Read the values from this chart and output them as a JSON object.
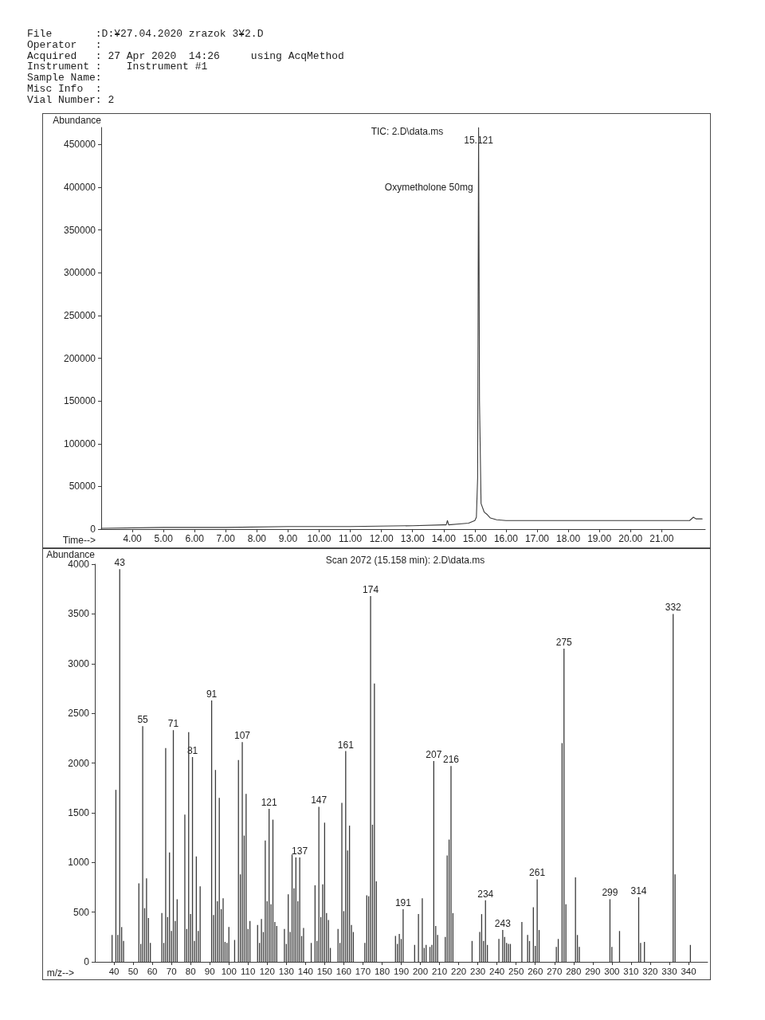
{
  "chart_data": [
    {
      "type": "other",
      "annotations": [
        "File       :D:¥27.04.2020 zrazok 3¥2.D",
        "Operator   :",
        "Acquired   : 27 Apr 2020  14:26     using AcqMethod",
        "Instrument :    Instrument #1",
        "Sample Name:",
        "Misc Info  :",
        "Vial Number: 2"
      ]
    },
    {
      "type": "line",
      "title": "TIC: 2.D\\data.ms",
      "xlabel": "Time-->",
      "ylabel": "Abundance",
      "color": "#3a3a3a",
      "marker": "none",
      "x": [
        3,
        5,
        7,
        9,
        11,
        13,
        14,
        14.08,
        14.12,
        14.16,
        14.5,
        14.8,
        15,
        15.05,
        15.09,
        15.121,
        15.15,
        15.2,
        15.3,
        15.4,
        15.5,
        15.7,
        16,
        17,
        18,
        19,
        20,
        21,
        21.9,
        22.02,
        22.1,
        22.3
      ],
      "values": [
        1000,
        2000,
        2000,
        3000,
        3000,
        4000,
        5000,
        5000,
        10000,
        5000,
        6000,
        7000,
        10000,
        14000,
        60000,
        470000,
        150000,
        30000,
        20000,
        17000,
        13000,
        11000,
        10000,
        10000,
        10000,
        10000,
        10000,
        10000,
        10000,
        14000,
        12000,
        12000
      ],
      "xlim": [
        3,
        22.4
      ],
      "xticks": [
        {
          "value": 4,
          "label": "4.00"
        },
        {
          "value": 5,
          "label": "5.00"
        },
        {
          "value": 6,
          "label": "6.00"
        },
        {
          "value": 7,
          "label": "7.00"
        },
        {
          "value": 8,
          "label": "8.00"
        },
        {
          "value": 9,
          "label": "9.00"
        },
        {
          "value": 10,
          "label": "10.00"
        },
        {
          "value": 11,
          "label": "11.00"
        },
        {
          "value": 12,
          "label": "12.00"
        },
        {
          "value": 13,
          "label": "13.00"
        },
        {
          "value": 14,
          "label": "14.00"
        },
        {
          "value": 15,
          "label": "15.00"
        },
        {
          "value": 16,
          "label": "16.00"
        },
        {
          "value": 17,
          "label": "17.00"
        },
        {
          "value": 18,
          "label": "18.00"
        },
        {
          "value": 19,
          "label": "19.00"
        },
        {
          "value": 20,
          "label": "20.00"
        },
        {
          "value": 21,
          "label": "21.00"
        }
      ],
      "ylim": [
        0,
        470000
      ],
      "yticks": [
        0,
        50000,
        100000,
        150000,
        200000,
        250000,
        300000,
        350000,
        400000,
        450000
      ],
      "annotations": [
        {
          "text": "15.121",
          "x": 15.121,
          "y": 470000
        },
        {
          "text": "Oxymetholone 50mg",
          "x": 15.121,
          "y": 400000
        }
      ]
    },
    {
      "type": "bar",
      "title": "Scan 2072 (15.158 min): 2.D\\data.ms",
      "xlabel": "m/z-->",
      "ylabel": "Abundance",
      "color": "#3a3a3a",
      "x": [
        39,
        41,
        42,
        43,
        44,
        45,
        53,
        54,
        55,
        56,
        57,
        58,
        59,
        65,
        66,
        67,
        68,
        69,
        70,
        71,
        72,
        73,
        77,
        78,
        79,
        80,
        81,
        82,
        83,
        84,
        85,
        91,
        92,
        93,
        94,
        95,
        96,
        97,
        98,
        99,
        100,
        103,
        105,
        106,
        107,
        108,
        109,
        110,
        111,
        115,
        116,
        117,
        118,
        119,
        120,
        121,
        122,
        123,
        124,
        125,
        129,
        130,
        131,
        132,
        133,
        134,
        135,
        136,
        137,
        138,
        139,
        143,
        145,
        146,
        147,
        148,
        149,
        150,
        151,
        152,
        153,
        157,
        158,
        159,
        160,
        161,
        162,
        163,
        164,
        165,
        171,
        172,
        173,
        174,
        175,
        176,
        177,
        187,
        188,
        189,
        190,
        191,
        197,
        199,
        201,
        202,
        203,
        205,
        206,
        207,
        208,
        209,
        213,
        214,
        215,
        216,
        217,
        227,
        231,
        232,
        233,
        234,
        235,
        241,
        243,
        244,
        245,
        246,
        247,
        253,
        256,
        257,
        259,
        260,
        261,
        262,
        271,
        272,
        274,
        275,
        276,
        281,
        282,
        283,
        299,
        300,
        304,
        314,
        315,
        317,
        332,
        333,
        341
      ],
      "values": [
        270,
        1730,
        270,
        3950,
        350,
        210,
        790,
        180,
        2370,
        540,
        840,
        440,
        190,
        490,
        190,
        2150,
        450,
        1100,
        310,
        2330,
        410,
        630,
        1480,
        330,
        2310,
        480,
        2060,
        210,
        1060,
        310,
        760,
        2630,
        470,
        1930,
        610,
        1650,
        530,
        640,
        200,
        190,
        350,
        220,
        2030,
        880,
        2210,
        1270,
        1690,
        330,
        410,
        370,
        190,
        430,
        300,
        1220,
        610,
        1540,
        580,
        1430,
        400,
        360,
        330,
        180,
        680,
        300,
        1080,
        740,
        1050,
        610,
        1050,
        260,
        340,
        190,
        770,
        210,
        1560,
        450,
        780,
        1400,
        490,
        420,
        140,
        330,
        190,
        1600,
        510,
        2120,
        1120,
        1370,
        370,
        300,
        190,
        670,
        660,
        3680,
        1380,
        2800,
        810,
        260,
        180,
        280,
        230,
        530,
        170,
        480,
        640,
        140,
        170,
        150,
        170,
        2020,
        360,
        270,
        250,
        1070,
        1230,
        1970,
        490,
        210,
        300,
        480,
        210,
        620,
        170,
        230,
        320,
        250,
        190,
        180,
        180,
        400,
        270,
        210,
        550,
        160,
        830,
        320,
        150,
        230,
        2200,
        3150,
        580,
        850,
        270,
        150,
        630,
        150,
        310,
        650,
        190,
        200,
        3500,
        880,
        170
      ],
      "annotations": [
        {
          "text": "43",
          "x": 43,
          "y": 3950
        },
        {
          "text": "55",
          "x": 55,
          "y": 2370
        },
        {
          "text": "71",
          "x": 71,
          "y": 2330
        },
        {
          "text": "81",
          "x": 81,
          "y": 2060
        },
        {
          "text": "91",
          "x": 91,
          "y": 2630
        },
        {
          "text": "107",
          "x": 107,
          "y": 2210
        },
        {
          "text": "121",
          "x": 121,
          "y": 1540
        },
        {
          "text": "137",
          "x": 137,
          "y": 1050
        },
        {
          "text": "147",
          "x": 147,
          "y": 1560
        },
        {
          "text": "161",
          "x": 161,
          "y": 2120
        },
        {
          "text": "174",
          "x": 174,
          "y": 3680
        },
        {
          "text": "191",
          "x": 191,
          "y": 530
        },
        {
          "text": "207",
          "x": 207,
          "y": 2020
        },
        {
          "text": "216",
          "x": 216,
          "y": 1970
        },
        {
          "text": "234",
          "x": 234,
          "y": 620
        },
        {
          "text": "243",
          "x": 243,
          "y": 320
        },
        {
          "text": "261",
          "x": 261,
          "y": 830
        },
        {
          "text": "275",
          "x": 275,
          "y": 3150
        },
        {
          "text": "299",
          "x": 299,
          "y": 630
        },
        {
          "text": "314",
          "x": 314,
          "y": 650
        },
        {
          "text": "332",
          "x": 332,
          "y": 3500
        }
      ],
      "xlim": [
        30,
        350
      ],
      "xticks": [
        40,
        50,
        60,
        70,
        80,
        90,
        100,
        110,
        120,
        130,
        140,
        150,
        160,
        170,
        180,
        190,
        200,
        210,
        220,
        230,
        240,
        250,
        260,
        270,
        280,
        290,
        300,
        310,
        320,
        330,
        340
      ],
      "ylim": [
        0,
        4000
      ],
      "yticks": [
        0,
        500,
        1000,
        1500,
        2000,
        2500,
        3000,
        3500,
        4000
      ]
    }
  ]
}
